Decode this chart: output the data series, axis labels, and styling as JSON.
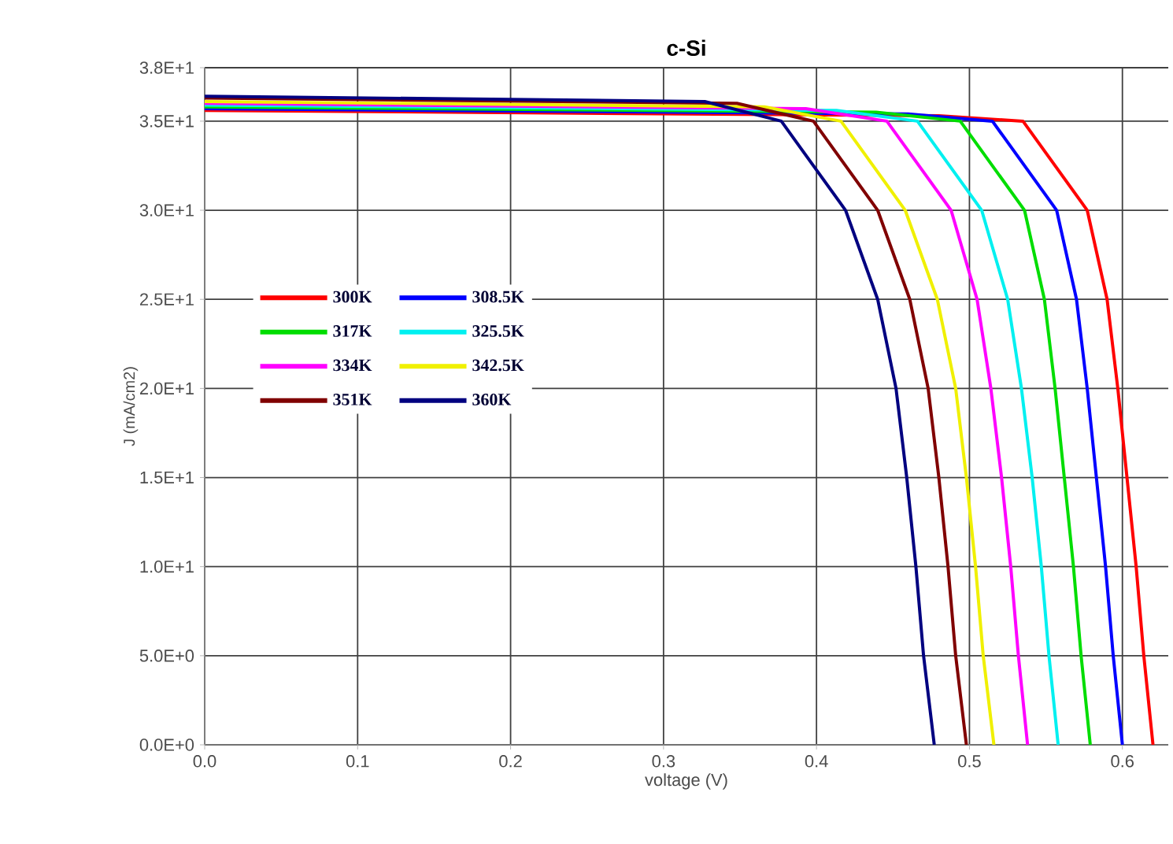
{
  "chart_data": {
    "type": "line",
    "title": "c-Si",
    "xlabel": "voltage (V)",
    "ylabel": "J (mA/cm2)",
    "xlim": [
      0,
      0.63
    ],
    "ylim": [
      0,
      38
    ],
    "xticks": [
      {
        "value": 0,
        "label": "0.0"
      },
      0.1,
      0.2,
      0.3,
      0.4,
      0.5,
      0.6
    ],
    "yticks": [
      {
        "value": 0,
        "label": "0.0E+0"
      },
      {
        "value": 5,
        "label": "5.0E+0"
      },
      {
        "value": 10,
        "label": "1.0E+1"
      },
      {
        "value": 15,
        "label": "1.5E+1"
      },
      {
        "value": 20,
        "label": "2.0E+1"
      },
      {
        "value": 25,
        "label": "2.5E+1"
      },
      {
        "value": 30,
        "label": "3.0E+1"
      },
      {
        "value": 35,
        "label": "3.5E+1"
      },
      {
        "value": 38,
        "label": "3.8E+1"
      }
    ],
    "grid": true,
    "legend": "left",
    "marker": "none",
    "line_style": "solid",
    "series": [
      {
        "name": "300K",
        "color": "#ff0000",
        "x": [
          0,
          0.48,
          0.535,
          0.577,
          0.59,
          0.597,
          0.603,
          0.609,
          0.614,
          0.62
        ],
        "values": [
          35.6,
          35.3,
          35,
          30,
          25,
          20,
          15,
          10,
          5,
          0
        ]
      },
      {
        "name": "308.5K",
        "color": "#0000ff",
        "x": [
          0,
          0.46,
          0.515,
          0.557,
          0.57,
          0.577,
          0.583,
          0.589,
          0.594,
          0.6
        ],
        "values": [
          35.7,
          35.4,
          35,
          30,
          25,
          20,
          15,
          10,
          5,
          0
        ]
      },
      {
        "name": "317K",
        "color": "#00dd00",
        "x": [
          0,
          0.439,
          0.494,
          0.536,
          0.549,
          0.556,
          0.562,
          0.568,
          0.573,
          0.579
        ],
        "values": [
          35.8,
          35.5,
          35,
          30,
          25,
          20,
          15,
          10,
          5,
          0
        ]
      },
      {
        "name": "325.5K",
        "color": "#00f0f0",
        "x": [
          0,
          0.413,
          0.466,
          0.508,
          0.525,
          0.534,
          0.541,
          0.547,
          0.552,
          0.558
        ],
        "values": [
          35.9,
          35.6,
          35,
          30,
          25,
          20,
          15,
          10,
          5,
          0
        ]
      },
      {
        "name": "334K",
        "color": "#ff00ff",
        "x": [
          0,
          0.393,
          0.446,
          0.488,
          0.505,
          0.514,
          0.521,
          0.527,
          0.532,
          0.538
        ],
        "values": [
          36.0,
          35.7,
          35,
          30,
          25,
          20,
          15,
          10,
          5,
          0
        ]
      },
      {
        "name": "342.5K",
        "color": "#f0f000",
        "x": [
          0,
          0.366,
          0.416,
          0.458,
          0.479,
          0.491,
          0.498,
          0.504,
          0.509,
          0.516
        ],
        "values": [
          36.1,
          35.8,
          35,
          30,
          25,
          20,
          15,
          10,
          5,
          0
        ]
      },
      {
        "name": "351K",
        "color": "#800000",
        "x": [
          0,
          0.348,
          0.398,
          0.44,
          0.461,
          0.473,
          0.48,
          0.486,
          0.491,
          0.498
        ],
        "values": [
          36.3,
          36.0,
          35,
          30,
          25,
          20,
          15,
          10,
          5,
          0
        ]
      },
      {
        "name": "360K",
        "color": "#000080",
        "x": [
          0,
          0.327,
          0.377,
          0.419,
          0.44,
          0.452,
          0.459,
          0.465,
          0.47,
          0.477
        ],
        "values": [
          36.4,
          36.1,
          35,
          30,
          25,
          20,
          15,
          10,
          5,
          0
        ]
      }
    ]
  }
}
